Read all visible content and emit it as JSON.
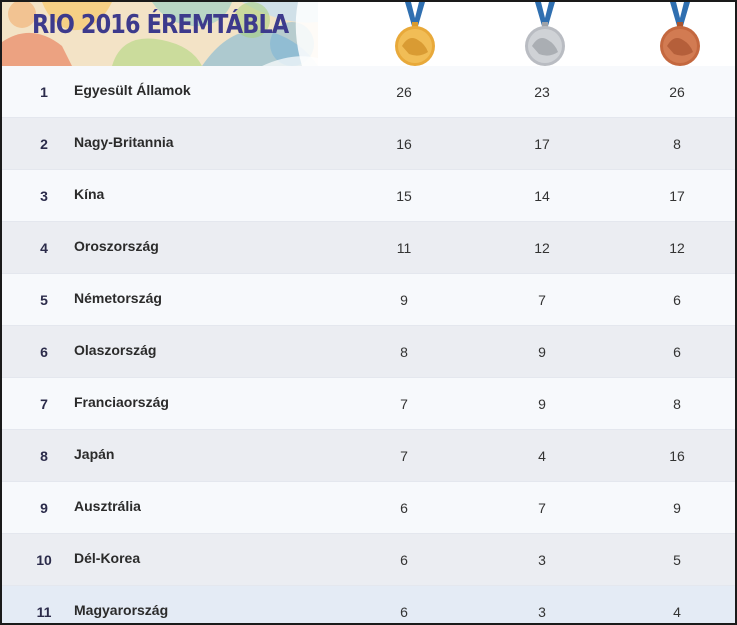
{
  "header": {
    "title": "RIO 2016 ÉREMTÁBLA",
    "medals": [
      {
        "icon": "gold-medal-icon",
        "color": "#e8a93a"
      },
      {
        "icon": "silver-medal-icon",
        "color": "#b9bcc2"
      },
      {
        "icon": "bronze-medal-icon",
        "color": "#c4683f"
      }
    ]
  },
  "rows": [
    {
      "rank": "1",
      "country": "Egyesült Államok",
      "gold": "26",
      "silver": "23",
      "bronze": "26"
    },
    {
      "rank": "2",
      "country": "Nagy-Britannia",
      "gold": "16",
      "silver": "17",
      "bronze": "8"
    },
    {
      "rank": "3",
      "country": "Kína",
      "gold": "15",
      "silver": "14",
      "bronze": "17"
    },
    {
      "rank": "4",
      "country": "Oroszország",
      "gold": "11",
      "silver": "12",
      "bronze": "12"
    },
    {
      "rank": "5",
      "country": "Németország",
      "gold": "9",
      "silver": "7",
      "bronze": "6"
    },
    {
      "rank": "6",
      "country": "Olaszország",
      "gold": "8",
      "silver": "9",
      "bronze": "6"
    },
    {
      "rank": "7",
      "country": "Franciaország",
      "gold": "7",
      "silver": "9",
      "bronze": "8"
    },
    {
      "rank": "8",
      "country": "Japán",
      "gold": "7",
      "silver": "4",
      "bronze": "16"
    },
    {
      "rank": "9",
      "country": "Ausztrália",
      "gold": "6",
      "silver": "7",
      "bronze": "9"
    },
    {
      "rank": "10",
      "country": "Dél-Korea",
      "gold": "6",
      "silver": "3",
      "bronze": "5"
    },
    {
      "rank": "11",
      "country": "Magyarország",
      "gold": "6",
      "silver": "3",
      "bronze": "4"
    }
  ]
}
